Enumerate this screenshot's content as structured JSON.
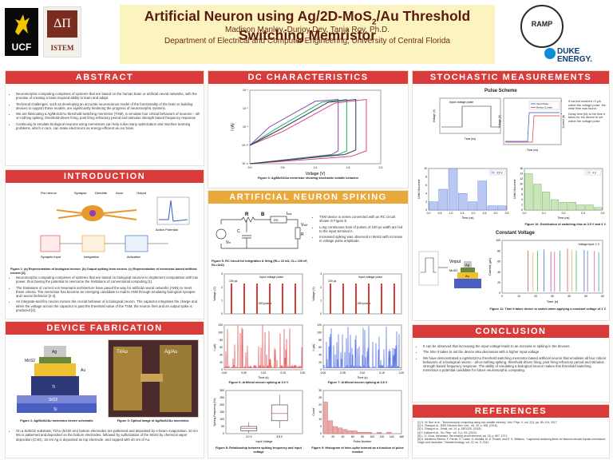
{
  "header": {
    "title_main": "Artificial Neuron using Ag/2D-MoS",
    "title_sub": "2",
    "title_end": "/Au Threshold Switching Memristor",
    "authors": "Madison Manley, Durjoy Dev, Tania Roy, Ph.D.",
    "department": "Department of Electrical and Computer Engineering, University of Central Florida",
    "logos": {
      "ucf": "UCF",
      "istem": "ISTEM",
      "ramp": "RAMP",
      "duke": "DUKE ENERGY."
    }
  },
  "colors": {
    "section_red": "#d93a3a",
    "section_gold": "#e9a93a",
    "title": "#5a1a10",
    "header_band": "#fbf3c0"
  },
  "abstract": {
    "heading": "ABSTRACT",
    "bullets": [
      "Neuromorphic computing comprises of systems that are based on the human brain or artificial neural networks, with the promise of creating a brain inspired ability to learn and adapt.",
      "Technical challenges, such as developing an accurate neuroscience model of the functionality of the brain to building devices to support these models, are significantly hindering the progress of neuromorphic systems.",
      "We are fabricating a Ag/MoS2/Au threshold switching memristor (TSM), to emulate four critical behaviors of neurons – all-or-nothing spiking, threshold-driven firing, post firing refractory period and stimulus strength based frequency response",
      "Continuing to emulate biological neurons using memristors can help solve many optimization and machine learning problems, which in turn, can make electronics as energy-efficient as our brain."
    ]
  },
  "introduction": {
    "heading": "INTRODUCTION",
    "labels": [
      "Pre-neuron",
      "Synapse",
      "Dendrite",
      "Axon",
      "Output",
      "Synaptic input",
      "Integration",
      "Activation",
      "Action Potential"
    ],
    "caption": "Figure 1: (a) Representation of biological neuron. (b) Output spiking from neuron. (c) Representation of memristor-based artificial neuron [3].",
    "bullets": [
      "Neuromorphic computing comprises of systems that are based on biological neurons to implement computation with low power, thus having the potential to overcome the limitations of conventional computing [1].",
      "The limitations of current von Neumann architecture have paved the way for artificial neural networks (ANN) to meet these criteria. The memristor has become an emerging candidate to realize ANN through emulating biological synapse and neuron behavior [2-4].",
      "An integrate-and-fire neuron mimics the crucial behavior of a biological neuron. The capacitor integrates the charge and when the voltage across the capacitor is past the threshold value of the TSM, the neuron fires and an output spike is produced [4]."
    ]
  },
  "fabrication": {
    "heading": "DEVICE FABRICATION",
    "labels": [
      "Ag",
      "MoS2",
      "Au",
      "Ti",
      "SiO2",
      "Si",
      "Ti/Au",
      "Ag/Au"
    ],
    "caption2": "Figure 2: Ag/MoS2/Au memristor device schematic",
    "caption3": "Figure 3: Optical image of Ag/MoS2/Au memristor.",
    "bullets": [
      "On a Si/SiO2 substrate, Ti/Au (5/100 nm) bottom electrodes are patterned and deposited by e-beam evaporation. 10 nm Mo is patterned and deposited on the bottom electrodes, followed by sulfurization of the MoS2 by chemical vapor deposition (CVD). 15 nm Ag is deposited as top electrode, and capped with 40 nm of Au."
    ]
  },
  "dc": {
    "heading": "DC CHARACTERISTICS",
    "caption": "Figure 4: Ag/MoS2/Au memristor showing stochastic volatile behavior",
    "chart_data": {
      "type": "line",
      "xlabel": "Voltage (V)",
      "ylabel": "I (A)",
      "yscale": "log",
      "x_ticks": [
        0.0,
        0.5,
        1.0,
        1.5,
        2.0
      ],
      "y_ticks": [
        "10⁻¹²",
        "10⁻¹⁰",
        "10⁻⁸",
        "10⁻⁶",
        "10⁻⁴"
      ],
      "xlim": [
        0,
        2
      ],
      "series": [
        {
          "color": "#8e44ad",
          "x": [
            0,
            1.25,
            1.35,
            1.35,
            1.0,
            0.3,
            0
          ],
          "y": [
            -12,
            -11,
            -10.6,
            -5,
            -5.2,
            -8,
            -10
          ]
        },
        {
          "color": "#27ae60",
          "x": [
            0,
            1.35,
            1.48,
            1.48,
            1.1,
            0.4,
            0
          ],
          "y": [
            -12,
            -11,
            -10.6,
            -5,
            -5.3,
            -8.2,
            -10
          ]
        },
        {
          "color": "#e0408e",
          "x": [
            0,
            1.55,
            1.78,
            1.78,
            1.3,
            0.5,
            0
          ],
          "y": [
            -12,
            -11.2,
            -10.6,
            -5,
            -5.4,
            -8.5,
            -10
          ]
        },
        {
          "color": "#2c3e50",
          "x": [
            0,
            1.45,
            1.62,
            1.62,
            1.2,
            0.45,
            0
          ],
          "y": [
            -12,
            -11,
            -10.5,
            -5,
            -5.3,
            -8.3,
            -10
          ]
        }
      ]
    }
  },
  "ans": {
    "heading": "ARTIFICIAL NEURON SPIKING",
    "circuit_labels": [
      "R",
      "L",
      "B",
      "R",
      "S",
      "I",
      "out",
      "V",
      "out",
      "C",
      "L",
      "R",
      "L",
      "V",
      "in"
    ],
    "caption5": "Figure 5: RC circuit for integration & firing (RL= 10 kΩ, CL= 100 nF, RL=1kΩ)",
    "bullets": [
      "TSM device is series connected with an RC circuit shown in Figure 5.",
      "Long continuous train of pulses of 100 µs width are fed to the input terminal A.",
      "Increased spiking was observed in MoS2 with increase in voltage pulse amplitude."
    ],
    "pulse_left": {
      "title": "Input voltage pulse",
      "ylabel": "Voltage (V)",
      "ann_top": "100 µs",
      "ann_bottom": "1,000 pulses",
      "y_ticks": [
        "0",
        "1",
        "2",
        "3"
      ]
    },
    "pulse_right": {
      "title": "Input voltage pulse",
      "ylabel": "Voltage (V)",
      "ann_top": "100 µs",
      "ann_bottom": "1,000 pulses",
      "y_ticks": [
        "0",
        "1",
        "2",
        "3"
      ]
    },
    "spike_left": {
      "ylabel": "I (µA)",
      "xlabel": "Time (s)",
      "caption": "Figure 6: Artificial neuron spiking at 3.0 V",
      "x_ticks": [
        "0.00",
        "0.05",
        "0.10",
        "0.15",
        "0.20"
      ],
      "y_ticks": [
        "0",
        "20",
        "40",
        "60",
        "80",
        "100",
        "120"
      ]
    },
    "spike_right": {
      "ylabel": "I (µA)",
      "xlabel": "Time (s)",
      "caption": "Figure 7: Artificial neuron spiking at 3.8 V",
      "x_ticks": [
        "0.00",
        "0.05",
        "0.10",
        "0.15",
        "0.20"
      ],
      "y_ticks": [
        "0",
        "20",
        "40",
        "60",
        "80",
        "100",
        "120"
      ]
    },
    "box": {
      "ylabel": "Spiking Frequency (Hz)",
      "xlabel": "Input Voltage",
      "caption": "Figure 8: Relationship between spiking frequency and input voltage",
      "categories": [
        "3.0 V",
        "3.8 V"
      ],
      "y_ticks": [
        "0",
        "50",
        "100",
        "150",
        "200",
        "250",
        "300"
      ]
    },
    "hist": {
      "ylabel": "Count",
      "xlabel": "Pulse Number",
      "caption": "Figure 9: Histogram of inter-spike interval as a function of pulse number",
      "x_ticks": [
        "0",
        "20",
        "40",
        "60",
        "80",
        "100",
        "120",
        "140",
        "160"
      ],
      "y_ticks": [
        "0",
        "5",
        "10",
        "15",
        "20",
        "25",
        "30"
      ],
      "values": [
        22,
        9,
        5,
        4,
        3,
        2,
        2,
        1,
        1,
        1,
        0,
        1,
        0,
        1,
        0,
        0
      ]
    }
  },
  "stochastic": {
    "heading": "STOCHASTIC MEASUREMENTS",
    "pulse_title": "Pulse Scheme",
    "inset_title": "Input voltage pulse",
    "legend": [
      "Input Pulse",
      "Device Current"
    ],
    "xlabel": "Time (ns)",
    "ylabel": "Voltage (V)",
    "ylabel_right": "Current (A)",
    "bullets": [
      "If current reached >1 µA within the voltage pulse, the write time was found.",
      "Delay time (td) is the time it takes for the device to set within the voltage pulse."
    ],
    "hist_left": {
      "legend": "3.5 V",
      "ylabel": "Units Occurred",
      "xlabel": "Time (ns)",
      "x_ticks": [
        "0.0",
        "0.5",
        "1.0",
        "1.5",
        "2.0",
        "2.5",
        "3.0",
        "3.5"
      ],
      "y_ticks": [
        "0",
        "2",
        "4",
        "6",
        "8",
        "10"
      ],
      "values": [
        2,
        5,
        10,
        4,
        2,
        7,
        1,
        1
      ]
    },
    "hist_right": {
      "legend": "4 V",
      "ylabel": "Units Occurred",
      "xlabel": "Time (ns)",
      "x_ticks": [
        "0.0",
        "0.1",
        "0.2",
        "0.3",
        "0.4"
      ],
      "y_ticks": [
        "0",
        "2",
        "4",
        "6",
        "8",
        "10",
        "12",
        "14",
        "16"
      ],
      "values": [
        14,
        10,
        7,
        4,
        3,
        3,
        2,
        2,
        1
      ]
    },
    "caption10": "Figure 10: Distribution of switching time at 3.5 V and 4 V",
    "cv_title": "Constant Voltage",
    "cv_labels": [
      "Vinput",
      "Ag",
      "MoS2",
      "Au"
    ],
    "cv_plot": {
      "legend": "Voltage input: 1 V",
      "ylabel": "Current (µA)",
      "xlabel": "Time (s)",
      "x_ticks": [
        "0",
        "10",
        "20",
        "30",
        "40",
        "50",
        "60"
      ],
      "y_ticks": [
        "0",
        "20",
        "40",
        "60",
        "80",
        "100"
      ]
    },
    "caption11": "Figure 11: Time it takes device to switch when applying a constant voltage of 1 V"
  },
  "conclusion": {
    "heading": "CONCLUSION",
    "bullets": [
      "It can be observed that increasing the input voltage leads to an increase in spiking in the devices.",
      "The time it takes to set the device also decreases with a higher input voltage.",
      "We have demonstrated a Ag/MoS2/Au threshold switching memristor based artificial neuron that emulates all four critical behaviors of a biological neuron - all-or-nothing spiking, threshold-driven firing, post firing refractory period and stimulus strength based frequency response. The ability of emulating a biological neuron makes this threshold switching memristor a potential candidate for future neuromorphic computing."
    ]
  },
  "references": {
    "heading": "REFERENCES",
    "items": [
      "[1] G. W. Burr et al., \"Neuromorphic computing using non-volatile memory,\" Adv. Phys. X, vol. 2(1), pp. 89–124, 2017.",
      "[2] X. Zhang et al., IEEE Electron Dev. Lett., vol. 39, p. 308, (2018).",
      "[3] X. Zhang et al., Small, vol. 14, p. 1801325, (2018).",
      "[4] Y. Kalkan et al., Sci. Rep., vol. 9, p. 53, (2019).",
      "[5] L. O. Chua, Memristor, the missing circuit element, vol. 18, p. 507, 1971.",
      "[6] D. Medeiros-Ribeiro, F. Perner, R. Carter, H. Abdalla, M. D. Pickett, and R. S. Williams, \"Lognormal switching times for titanium dioxide bipolar memristors: Origin and resolution,\" Nanotechnology, vol. 22, no. 9, 2011."
    ]
  }
}
